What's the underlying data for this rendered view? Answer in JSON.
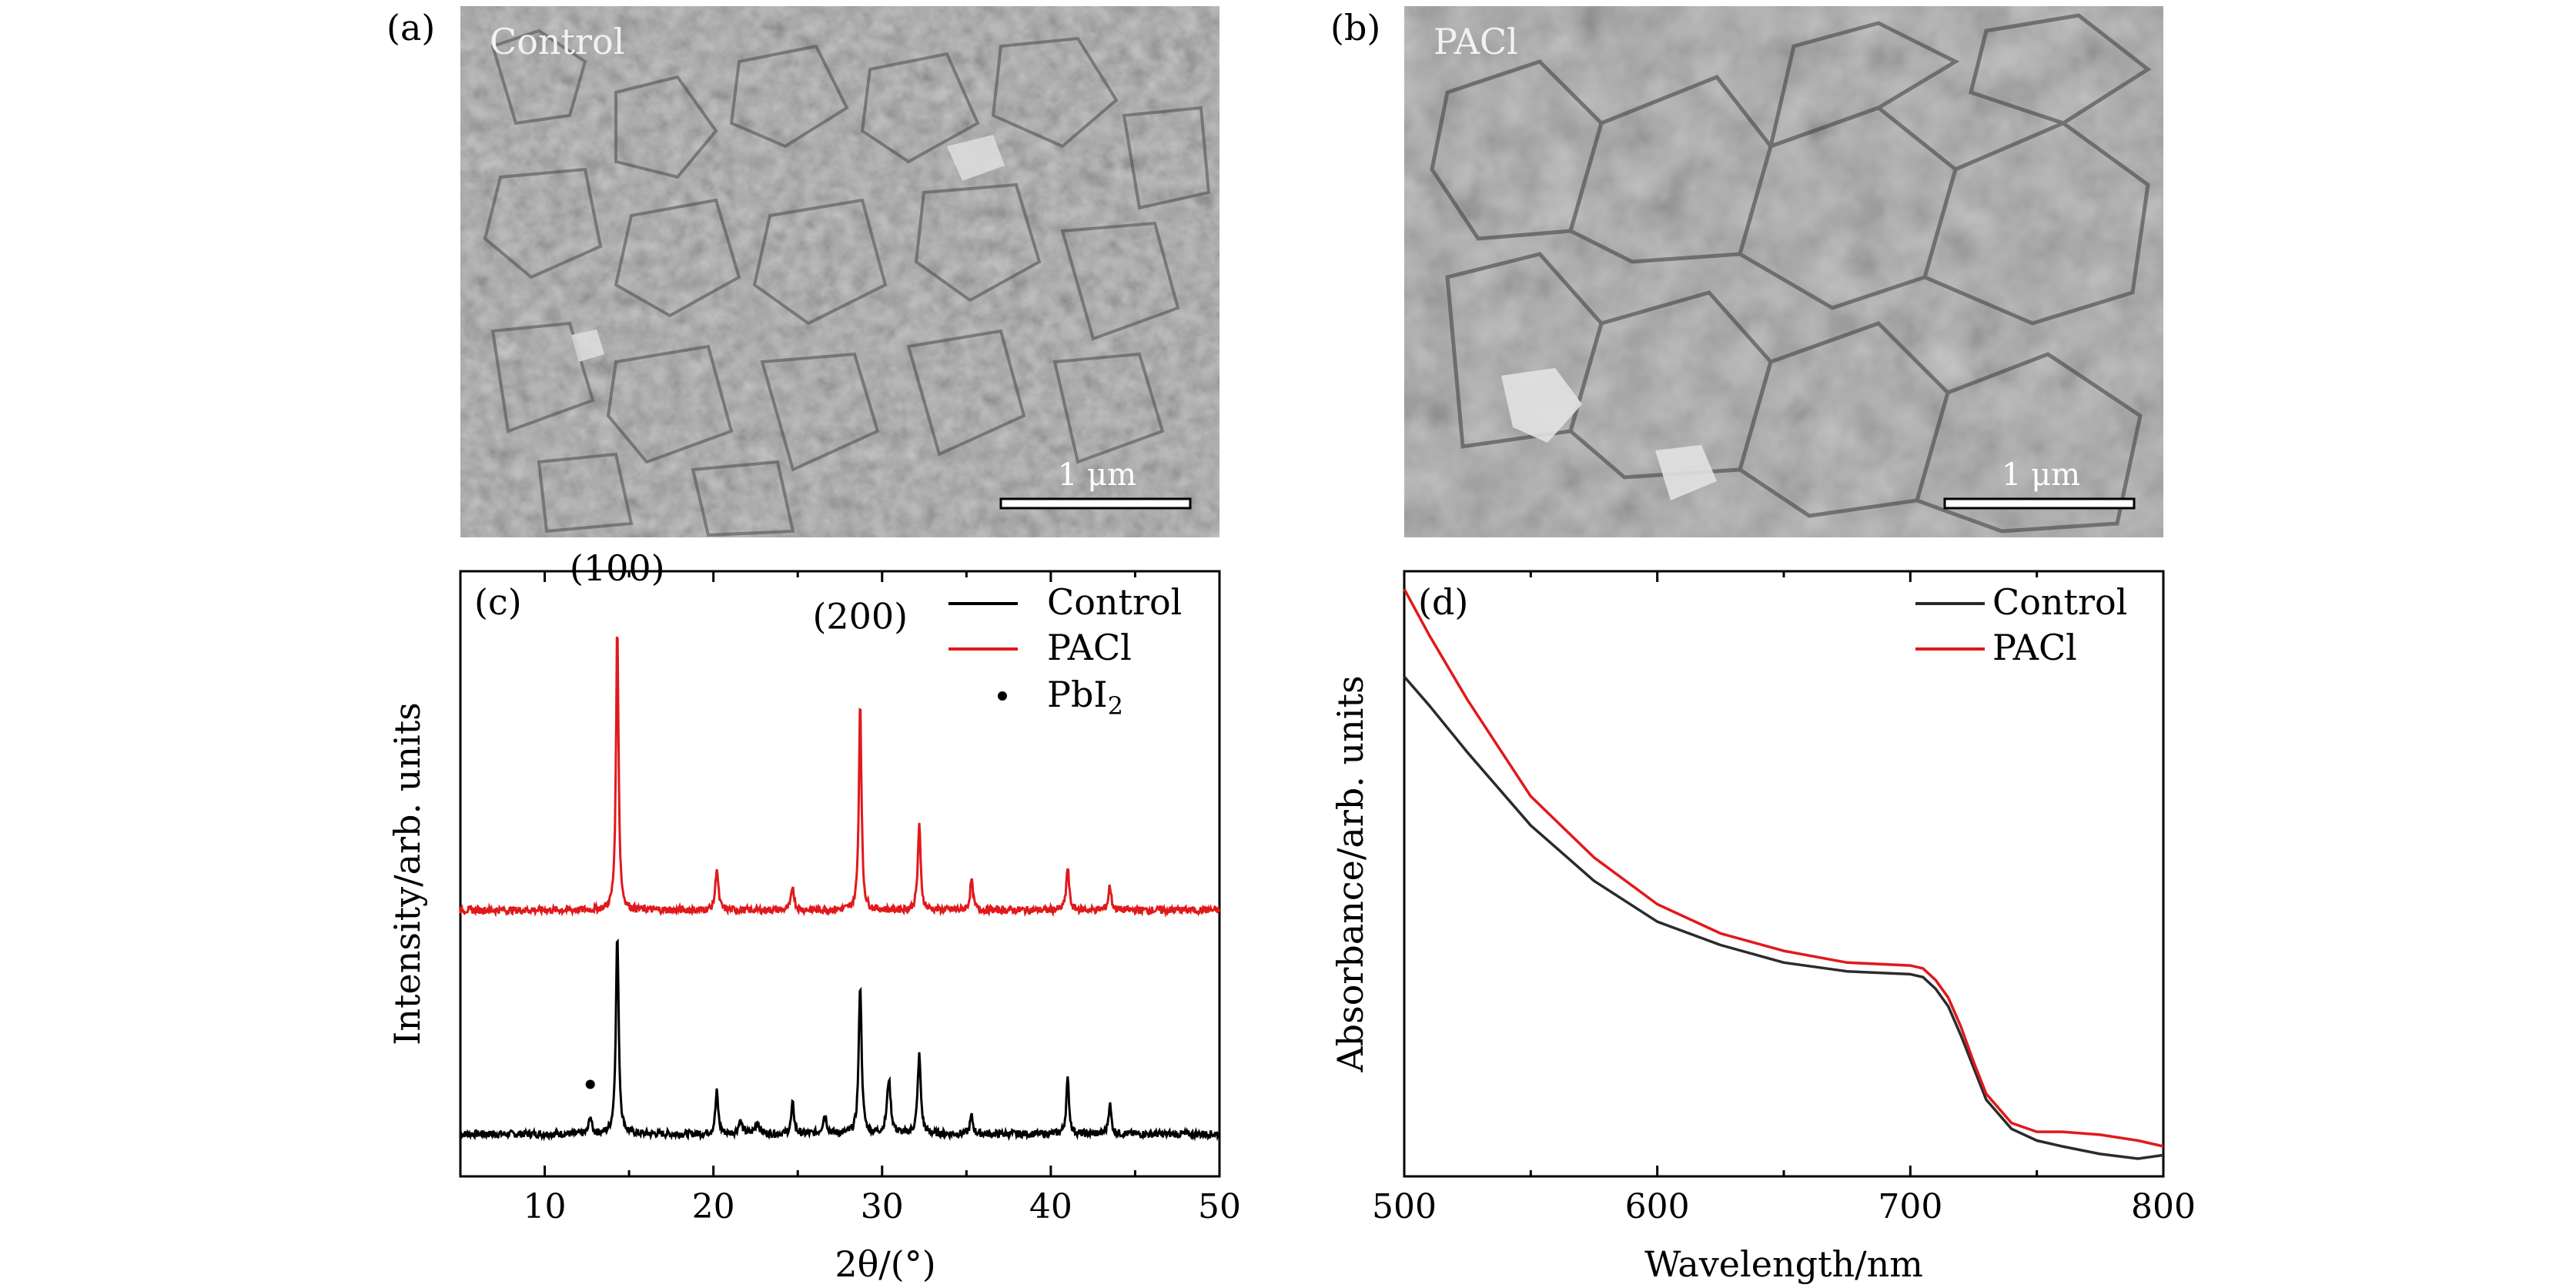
{
  "chart_data": [
    {
      "panel": "(a)",
      "type": "image",
      "label": "Control",
      "scale_bar": "1 μm"
    },
    {
      "panel": "(b)",
      "type": "image",
      "label": "PACl",
      "scale_bar": "1 μm"
    },
    {
      "panel": "(c)",
      "type": "line",
      "xlabel": "2θ/(°)",
      "ylabel": "Intensity/arb. units",
      "xlim": [
        5,
        50
      ],
      "ylim": [
        0,
        1
      ],
      "x_ticks": [
        10,
        20,
        30,
        40,
        50
      ],
      "legend": [
        "Control",
        "PACl",
        "PbI2"
      ],
      "legend_position": "top-right",
      "peak_labels": [
        {
          "text": "(100)",
          "x": 14.3
        },
        {
          "text": "(200)",
          "x": 28.7
        }
      ],
      "pbi2_marker": {
        "x": 12.7,
        "y": 0.152
      },
      "series": [
        {
          "name": "Control",
          "color": "#000000",
          "baseline": 0.07,
          "peaks": [
            [
              12.7,
              0.03,
              0.09
            ],
            [
              14.3,
              0.33,
              0.1
            ],
            [
              20.2,
              0.07,
              0.1
            ],
            [
              21.6,
              0.02,
              0.14
            ],
            [
              22.6,
              0.02,
              0.14
            ],
            [
              24.7,
              0.05,
              0.1
            ],
            [
              26.6,
              0.03,
              0.14
            ],
            [
              28.7,
              0.25,
              0.1
            ],
            [
              30.4,
              0.09,
              0.13
            ],
            [
              32.2,
              0.13,
              0.11
            ],
            [
              35.3,
              0.03,
              0.1
            ],
            [
              41.0,
              0.09,
              0.1
            ],
            [
              43.5,
              0.05,
              0.1
            ]
          ]
        },
        {
          "name": "PACl",
          "color": "#e1191b",
          "baseline": 0.44,
          "peaks": [
            [
              14.3,
              0.47,
              0.09
            ],
            [
              20.2,
              0.07,
              0.1
            ],
            [
              24.7,
              0.04,
              0.1
            ],
            [
              28.7,
              0.35,
              0.09
            ],
            [
              32.2,
              0.14,
              0.1
            ],
            [
              35.3,
              0.05,
              0.1
            ],
            [
              41.0,
              0.07,
              0.1
            ],
            [
              43.5,
              0.04,
              0.1
            ]
          ]
        }
      ]
    },
    {
      "panel": "(d)",
      "type": "line",
      "xlabel": "Wavelength/nm",
      "ylabel": "Absorbance/arb. units",
      "xlim": [
        500,
        800
      ],
      "ylim": [
        0,
        1
      ],
      "x_ticks": [
        500,
        600,
        700,
        800
      ],
      "legend": [
        "Control",
        "PACl"
      ],
      "legend_position": "top-right",
      "series": [
        {
          "name": "Control",
          "color": "#2b2b2b",
          "x": [
            500,
            510,
            525,
            550,
            575,
            600,
            625,
            650,
            675,
            700,
            705,
            710,
            715,
            720,
            725,
            730,
            740,
            750,
            760,
            775,
            790,
            800
          ],
          "y": [
            0.83,
            0.78,
            0.7,
            0.575,
            0.48,
            0.41,
            0.37,
            0.34,
            0.325,
            0.32,
            0.315,
            0.295,
            0.265,
            0.215,
            0.16,
            0.105,
            0.055,
            0.035,
            0.025,
            0.012,
            0.004,
            0.01
          ]
        },
        {
          "name": "PACl",
          "color": "#e1191b",
          "x": [
            500,
            510,
            525,
            550,
            575,
            600,
            625,
            650,
            675,
            700,
            705,
            710,
            715,
            720,
            725,
            730,
            740,
            750,
            760,
            775,
            790,
            800
          ],
          "y": [
            0.98,
            0.9,
            0.79,
            0.625,
            0.52,
            0.44,
            0.39,
            0.36,
            0.34,
            0.335,
            0.33,
            0.31,
            0.28,
            0.23,
            0.17,
            0.115,
            0.065,
            0.05,
            0.05,
            0.045,
            0.035,
            0.025
          ]
        }
      ]
    }
  ],
  "colors": {
    "control": "#000000",
    "pacl": "#e1191b",
    "sem_background": "#9b9b9b"
  }
}
